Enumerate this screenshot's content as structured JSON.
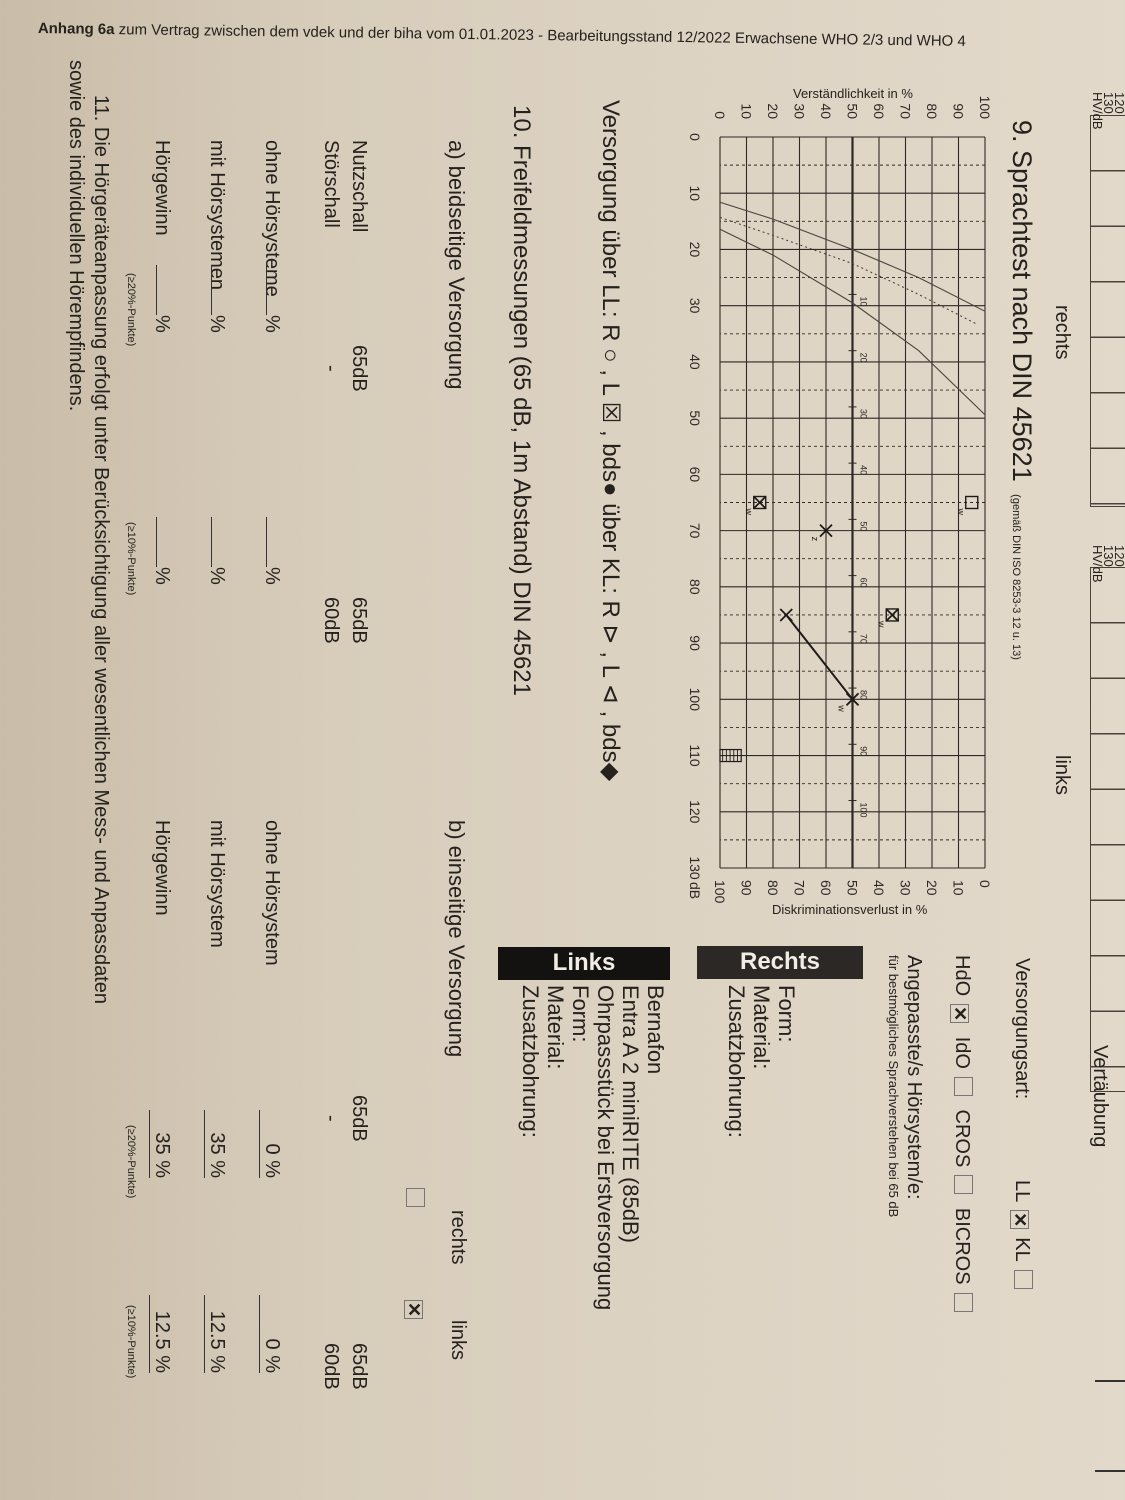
{
  "header": {
    "bold": "Anhang 6a",
    "text": "zum Vertrag zwischen dem vdek und der biha vom 01.01.2023 - Bearbeitungsstand 12/2022 Erwachsene WHO 2/3 und WHO 4"
  },
  "top": {
    "scale_120": "120",
    "scale_130": "130",
    "scale_unit": "HV/dB",
    "rechts": "rechts",
    "links": "links",
    "vertaeubung": "Vertäubung"
  },
  "section9": {
    "title": "9. Sprachtest nach DIN 45621",
    "subtitle": "(gemäß DIN ISO 8253-3 12 u. 13)"
  },
  "chart_data": {
    "type": "scatter",
    "ylabel": "Verständlichkeit in %",
    "y2label": "Diskriminationsverlust in %",
    "xunit": "dB",
    "xlim": [
      0,
      130
    ],
    "ylim": [
      0,
      100
    ],
    "y2lim": [
      100,
      0
    ],
    "xticks": [
      "0",
      "10",
      "20",
      "30",
      "40",
      "50",
      "60",
      "70",
      "80",
      "90",
      "100",
      "110",
      "120",
      "130"
    ],
    "yticks": [
      "0",
      "10",
      "20",
      "30",
      "40",
      "50",
      "60",
      "70",
      "80",
      "90",
      "100"
    ],
    "y2ticks": [
      "100",
      "90",
      "80",
      "70",
      "60",
      "50",
      "40",
      "30",
      "20",
      "10",
      "0"
    ],
    "grid": true,
    "inner_scale_labels": [
      "10",
      "20",
      "30",
      "40",
      "50",
      "60",
      "70",
      "80",
      "90",
      "100"
    ],
    "reference_curves": [
      {
        "style": "solid",
        "points": [
          [
            11.6,
            0
          ],
          [
            14.6,
            20
          ],
          [
            20,
            50
          ],
          [
            25,
            75
          ],
          [
            31,
            100
          ]
        ]
      },
      {
        "style": "dotted",
        "points": [
          [
            14.3,
            0
          ],
          [
            17.5,
            20
          ],
          [
            22.5,
            50
          ],
          [
            28,
            75
          ],
          [
            33.3,
            97
          ]
        ]
      },
      {
        "style": "solid",
        "points": [
          [
            16.4,
            0
          ],
          [
            21,
            20
          ],
          [
            29.5,
            50
          ],
          [
            38,
            75
          ],
          [
            49.4,
            100
          ]
        ]
      }
    ],
    "marks": [
      {
        "symbol": "square",
        "label": "w",
        "x": 65,
        "y": 95
      },
      {
        "symbol": "boxed-x",
        "label": "w",
        "x": 65,
        "y": 15
      },
      {
        "symbol": "x",
        "label": "z",
        "x": 70,
        "y": 40
      },
      {
        "symbol": "boxed-x",
        "label": "w",
        "x": 85,
        "y": 65
      },
      {
        "symbol": "x",
        "label": "",
        "x": 85,
        "y": 25
      },
      {
        "symbol": "x",
        "label": "w",
        "x": 100,
        "y": 50
      }
    ],
    "connected_line": [
      [
        85,
        25
      ],
      [
        100,
        50
      ]
    ],
    "hatched_marker": {
      "x": 110,
      "y": [
        0,
        8
      ]
    }
  },
  "versorgung_legend": "Versorgung über LL: R ○ , L ☒ , bds● über KL: R ⊳ , L ⊲ , bds◆",
  "versorgungsart": {
    "label": "Versorgungsart:",
    "ll": "LL",
    "ll_checked": true,
    "kl": "KL",
    "kl_checked": false,
    "hdo": "HdO",
    "hdo_checked": true,
    "ido": "IdO",
    "cros": "CROS",
    "bicros": "BICROS"
  },
  "hoersystem": {
    "title": "Angepasste/s Hörsystem/e:",
    "note": "für bestmögliches Sprachverstehen bei 65 dB"
  },
  "rechts": {
    "heading": "Rechts",
    "form": "Form:",
    "material": "Material:",
    "zusatz": "Zusatzbohrung:"
  },
  "links": {
    "heading": "Links",
    "brand": "Bernafon",
    "model": "Entra A 2 miniRITE (85dB)",
    "ohrpass": "Ohrpassstück bei Erstversorgung",
    "form": "Form:",
    "material": "Material:",
    "zusatz": "Zusatzbohrung:"
  },
  "section10": {
    "title": "10. Freifeldmessungen (65 dB, 1m Abstand) DIN 45621",
    "a": {
      "title": "a) beidseitige Versorgung",
      "nutzschall": "Nutzschall",
      "stoerschall": "Störschall",
      "col1": {
        "nutz": "65dB",
        "stoer": "-"
      },
      "col2": {
        "nutz": "65dB",
        "stoer": "60dB"
      },
      "ohne": "ohne Hörsysteme",
      "mit": "mit Hörsystemen",
      "gewinn": "Hörgewinn",
      "pct": "%",
      "note1": "(≥20%-Punkte)",
      "note2": "(≥10%-Punkte)"
    },
    "b": {
      "title": "b) einseitige Versorgung",
      "rechts": "rechts",
      "links": "links",
      "rechts_checked": false,
      "links_checked": true,
      "col1": {
        "nutz": "65dB",
        "stoer": "-"
      },
      "col2": {
        "nutz": "65dB",
        "stoer": "60dB"
      },
      "ohne": "ohne Hörsystem",
      "mit": "mit Hörsystem",
      "gewinn": "Hörgewinn",
      "ohne1": "0 %",
      "mit1": "35 %",
      "gewinn1": "35 %",
      "ohne2": "0 %",
      "mit2": "12.5 %",
      "gewinn2": "12.5 %",
      "note1": "(≥20%-Punkte)",
      "note2": "(≥10%-Punkte)"
    }
  },
  "section11": {
    "line1": "11. Die Hörgeräteanpassung erfolgt unter Berücksichtigung aller wesentlichen Mess- und Anpassdaten",
    "line2": "sowie des individuellen Hörempfindens."
  }
}
